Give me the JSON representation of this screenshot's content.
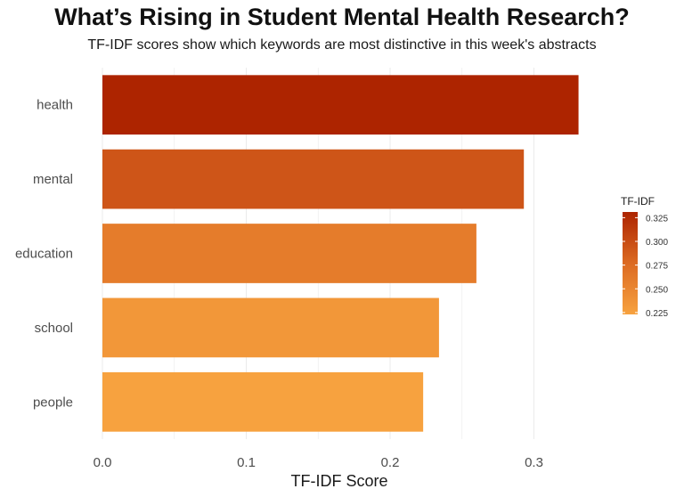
{
  "chart_data": {
    "type": "bar",
    "orientation": "horizontal",
    "title": "What’s Rising in Student Mental Health Research?",
    "subtitle": "TF-IDF scores show which keywords are most distinctive in this week's abstracts",
    "xlabel": "TF-IDF Score",
    "ylabel": "",
    "categories": [
      "health",
      "mental",
      "education",
      "school",
      "people"
    ],
    "values": [
      0.331,
      0.293,
      0.26,
      0.234,
      0.223
    ],
    "xlim": [
      0,
      0.345
    ],
    "xticks": [
      0.0,
      0.1,
      0.2,
      0.3
    ],
    "xtick_labels": [
      "0.0",
      "0.1",
      "0.2",
      "0.3"
    ],
    "grid": "vertical",
    "legend": {
      "title": "TF-IDF",
      "position": "right",
      "type": "colorbar",
      "range": [
        0.223,
        0.331
      ],
      "ticks": [
        0.225,
        0.25,
        0.275,
        0.3,
        0.325
      ],
      "tick_labels": [
        "0.225",
        "0.250",
        "0.275",
        "0.300",
        "0.325"
      ],
      "low_color": "#f7a23f",
      "high_color": "#ad2400"
    },
    "colors": {
      "low": "#f7a23f",
      "high": "#ad2400"
    }
  }
}
